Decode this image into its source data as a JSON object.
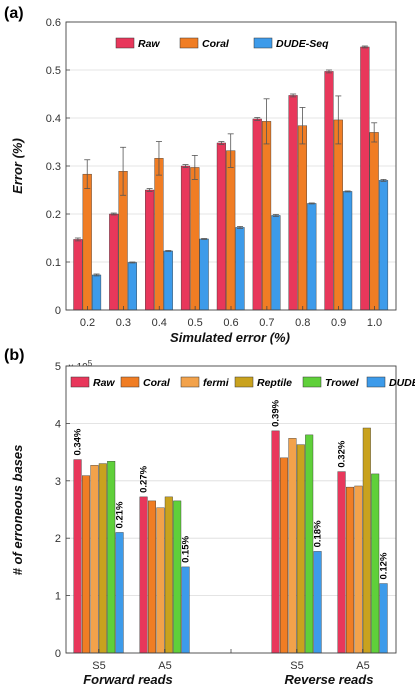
{
  "chart_data": [
    {
      "panel_label": "(a)",
      "type": "bar",
      "categories": [
        "0.2",
        "0.3",
        "0.4",
        "0.5",
        "0.6",
        "0.7",
        "0.8",
        "0.9",
        "1.0"
      ],
      "series": [
        {
          "name": "Raw",
          "color": "#e8375b",
          "values": [
            0.147,
            0.2,
            0.25,
            0.3,
            0.348,
            0.398,
            0.447,
            0.497,
            0.548
          ],
          "errors": [
            0.003,
            0.002,
            0.003,
            0.003,
            0.003,
            0.003,
            0.003,
            0.003,
            0.002
          ]
        },
        {
          "name": "Coral",
          "color": "#f07d24",
          "values": [
            0.283,
            0.289,
            0.316,
            0.297,
            0.332,
            0.393,
            0.384,
            0.396,
            0.37
          ],
          "errors": [
            0.03,
            0.05,
            0.035,
            0.025,
            0.035,
            0.047,
            0.038,
            0.05,
            0.02
          ]
        },
        {
          "name": "DUDE-Seq",
          "color": "#3d9bea",
          "values": [
            0.073,
            0.099,
            0.123,
            0.148,
            0.172,
            0.197,
            0.222,
            0.247,
            0.27
          ],
          "errors": [
            0.002,
            0.001,
            0.001,
            0.001,
            0.002,
            0.002,
            0.001,
            0.001,
            0.002
          ]
        }
      ],
      "xlabel": "Simulated error (%)",
      "ylabel": "Error (%)",
      "ylim": [
        0,
        0.6
      ],
      "yticks": [
        "0",
        "0.1",
        "0.2",
        "0.3",
        "0.4",
        "0.5",
        "0.6"
      ],
      "grid": true,
      "legend": "top"
    },
    {
      "panel_label": "(b)",
      "type": "bar",
      "y_multiplier": "× 10",
      "y_multiplier_exp": "5",
      "categories": [
        "S5",
        "A5",
        "",
        "S5",
        "A5"
      ],
      "group_labels": [
        "Forward reads",
        "Reverse reads"
      ],
      "series": [
        {
          "name": "Raw",
          "color": "#e8375b",
          "values": [
            3.37,
            2.72,
            0,
            3.87,
            3.16
          ]
        },
        {
          "name": "Coral",
          "color": "#f07d24",
          "values": [
            3.09,
            2.65,
            0,
            3.4,
            2.89
          ]
        },
        {
          "name": "fermi",
          "color": "#f2a24b",
          "values": [
            3.27,
            2.53,
            0,
            3.74,
            2.91
          ]
        },
        {
          "name": "Reptile",
          "color": "#c9a21e",
          "values": [
            3.3,
            2.72,
            0,
            3.63,
            3.92
          ]
        },
        {
          "name": "Trowel",
          "color": "#5fd03a",
          "values": [
            3.34,
            2.65,
            0,
            3.8,
            3.12
          ]
        },
        {
          "name": "DUDE-Seq",
          "color": "#3d9bea",
          "values": [
            2.1,
            1.5,
            0,
            1.77,
            1.21
          ]
        }
      ],
      "annotations": [
        {
          "series": "Raw",
          "category": 0,
          "text": "0.34%"
        },
        {
          "series": "DUDE-Seq",
          "category": 0,
          "text": "0.21%"
        },
        {
          "series": "Raw",
          "category": 1,
          "text": "0.27%"
        },
        {
          "series": "DUDE-Seq",
          "category": 1,
          "text": "0.15%"
        },
        {
          "series": "Raw",
          "category": 3,
          "text": "0.39%"
        },
        {
          "series": "DUDE-Seq",
          "category": 3,
          "text": "0.18%"
        },
        {
          "series": "Raw",
          "category": 4,
          "text": "0.32%"
        },
        {
          "series": "DUDE-Seq",
          "category": 4,
          "text": "0.12%"
        }
      ],
      "ylabel": "# of erroneous bases",
      "ylim": [
        0,
        5
      ],
      "yticks": [
        "0",
        "1",
        "2",
        "3",
        "4",
        "5"
      ],
      "grid": true,
      "legend": "top"
    }
  ]
}
